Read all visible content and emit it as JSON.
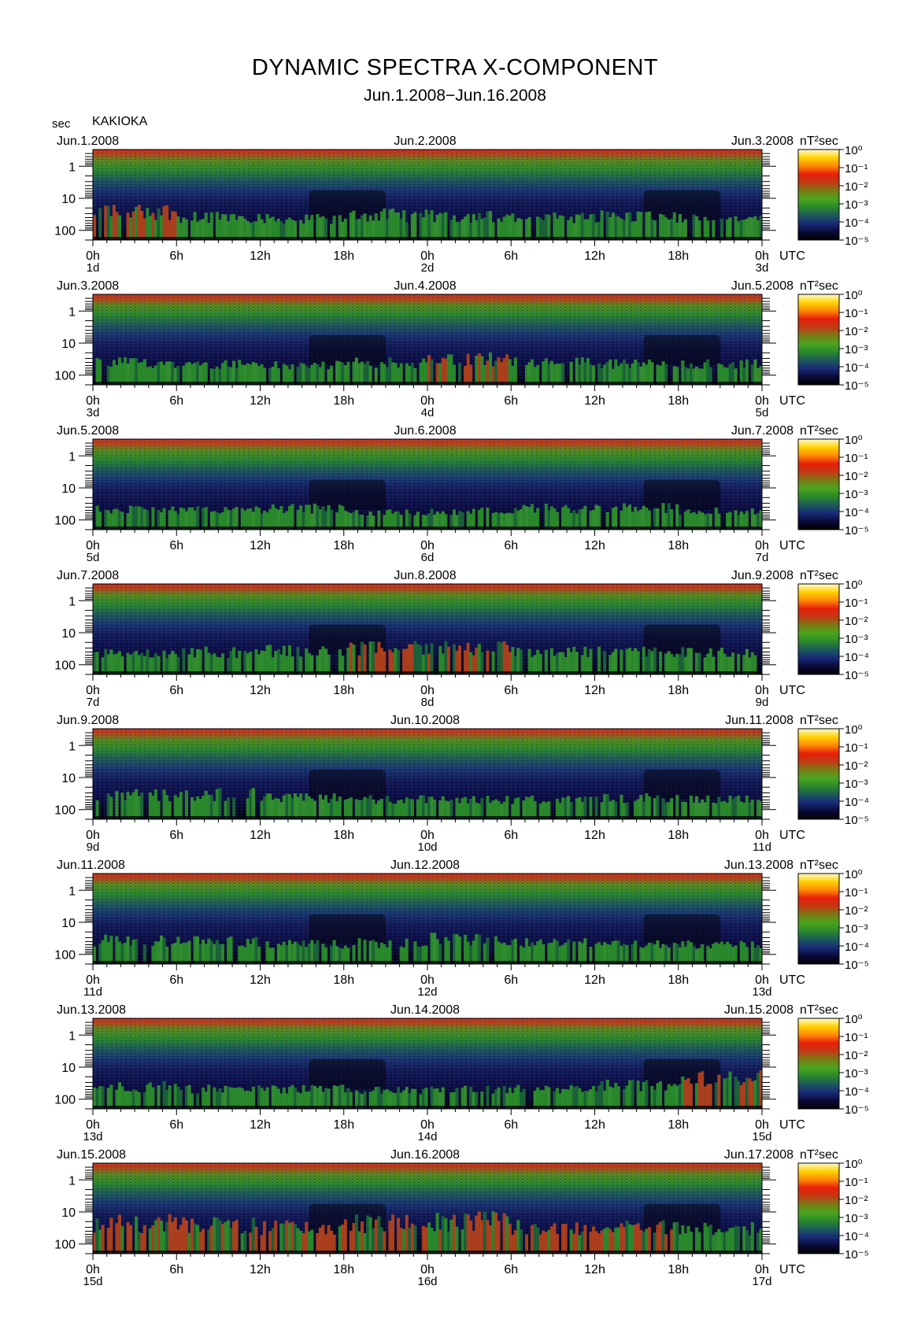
{
  "title": "DYNAMIC SPECTRA X-COMPONENT",
  "subtitle": "Jun.1.2008−Jun.16.2008",
  "y_unit_label": "sec",
  "station": "KAKIOKA",
  "colorbar_unit": "nT²sec",
  "utc_label": "UTC",
  "colors": {
    "colormap": [
      "#000000",
      "#0a0a3a",
      "#1a2a78",
      "#1c5a5a",
      "#2a8a2a",
      "#4aa51e",
      "#7a7a14",
      "#c23a14",
      "#e81e0a",
      "#ff8a00",
      "#ffd200",
      "#fffbd0"
    ]
  },
  "chart_data": {
    "type": "heatmap",
    "description_variable": "X-component geomagnetic power spectral density",
    "y_axis": {
      "label": "sec",
      "scale": "log",
      "ticks": [
        "1",
        "10",
        "100"
      ],
      "range": [
        0.3,
        200
      ]
    },
    "x_ticks": [
      "0h",
      "6h",
      "12h",
      "18h",
      "0h",
      "6h",
      "12h",
      "18h",
      "0h"
    ],
    "colorbar": {
      "label": "nT²sec",
      "scale": "log",
      "ticks": [
        "10⁰",
        "10⁻¹",
        "10⁻²",
        "10⁻³",
        "10⁻⁴",
        "10⁻⁵"
      ],
      "range": [
        1e-05,
        1
      ]
    },
    "panels": [
      {
        "date_left": "Jun.1.2008",
        "date_mid": "Jun.2.2008",
        "date_right": "Jun.3.2008",
        "day_start": "1d",
        "day_mid": "2d",
        "day_end": "3d",
        "activity": [
          0.7,
          0.5,
          0.4,
          0.55,
          0.5,
          0.45,
          0.5,
          0.4
        ]
      },
      {
        "date_left": "Jun.3.2008",
        "date_mid": "Jun.4.2008",
        "date_right": "Jun.5.2008",
        "day_start": "3d",
        "day_mid": "4d",
        "day_end": "5d",
        "activity": [
          0.45,
          0.4,
          0.35,
          0.45,
          0.6,
          0.45,
          0.4,
          0.4
        ]
      },
      {
        "date_left": "Jun.5.2008",
        "date_mid": "Jun.6.2008",
        "date_right": "Jun.7.2008",
        "day_start": "5d",
        "day_mid": "6d",
        "day_end": "7d",
        "activity": [
          0.35,
          0.35,
          0.4,
          0.25,
          0.3,
          0.4,
          0.45,
          0.3
        ]
      },
      {
        "date_left": "Jun.7.2008",
        "date_mid": "Jun.8.2008",
        "date_right": "Jun.9.2008",
        "day_start": "7d",
        "day_mid": "8d",
        "day_end": "9d",
        "activity": [
          0.4,
          0.45,
          0.5,
          0.6,
          0.6,
          0.45,
          0.45,
          0.45
        ]
      },
      {
        "date_left": "Jun.9.2008",
        "date_mid": "Jun.10.2008",
        "date_right": "Jun.11.2008",
        "day_start": "9d",
        "day_end": "11d",
        "day_mid": "10d",
        "activity": [
          0.55,
          0.55,
          0.4,
          0.35,
          0.35,
          0.35,
          0.4,
          0.35
        ]
      },
      {
        "date_left": "Jun.11.2008",
        "date_mid": "Jun.12.2008",
        "date_right": "Jun.13.2008",
        "day_start": "11d",
        "day_mid": "12d",
        "day_end": "13d",
        "activity": [
          0.5,
          0.45,
          0.35,
          0.4,
          0.55,
          0.4,
          0.35,
          0.35
        ]
      },
      {
        "date_left": "Jun.13.2008",
        "date_mid": "Jun.14.2008",
        "date_right": "Jun.15.2008",
        "day_start": "13d",
        "day_mid": "14d",
        "day_end": "15d",
        "activity": [
          0.45,
          0.35,
          0.35,
          0.3,
          0.35,
          0.35,
          0.5,
          0.75
        ]
      },
      {
        "date_left": "Jun.15.2008",
        "date_mid": "Jun.16.2008",
        "date_right": "Jun.17.2008",
        "day_start": "15d",
        "day_mid": "16d",
        "day_end": "17d",
        "activity": [
          0.75,
          0.7,
          0.6,
          0.75,
          0.85,
          0.6,
          0.6,
          0.55
        ]
      }
    ]
  }
}
